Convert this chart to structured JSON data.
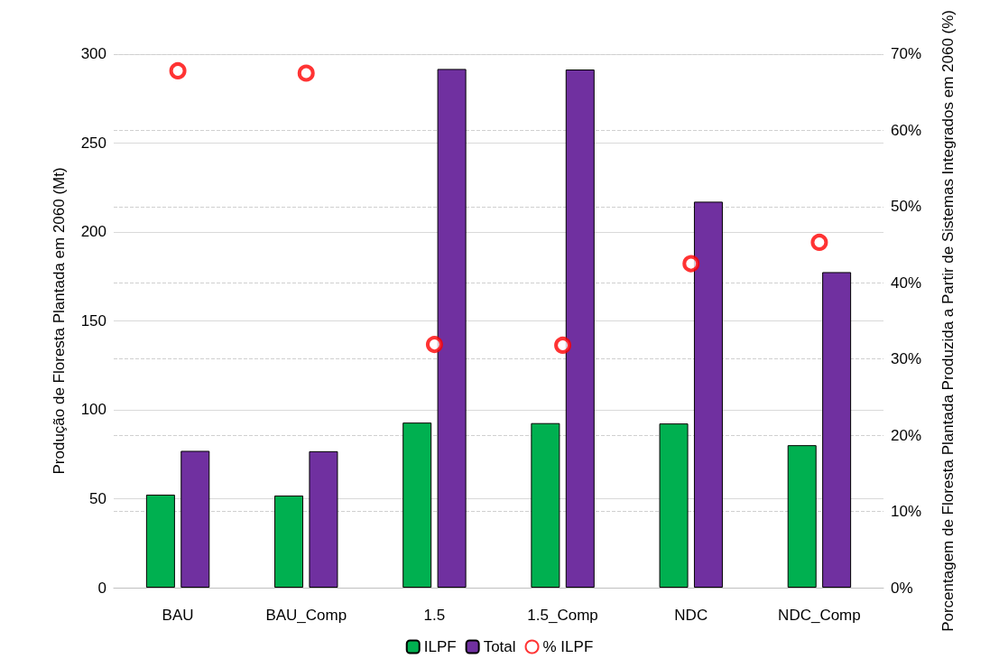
{
  "chart_data": {
    "type": "bar",
    "categories": [
      "BAU",
      "BAU_Comp",
      "1.5",
      "1.5_Comp",
      "NDC",
      "NDC_Comp"
    ],
    "ylabel": "Produção de Floresta Plantada em 2060 (Mt)",
    "y2label": "Porcentagem de Floresta Plantada Produzida a Partir de Sistemas Integrados em 2060 (%)",
    "series": [
      {
        "name": "ILPF",
        "color": "#00b050",
        "values": [
          52.3,
          51.8,
          92.8,
          92.5,
          92.3,
          80.1
        ]
      },
      {
        "name": "Total",
        "color": "#7030a0",
        "values": [
          76.9,
          76.7,
          291.6,
          291.3,
          217.0,
          177.4
        ]
      },
      {
        "name": "% ILPF",
        "type": "scatter",
        "axis": "y2",
        "color": "#ff0000",
        "marker": "circle",
        "values": [
          67.8,
          67.5,
          31.9,
          31.8,
          42.5,
          45.3
        ]
      }
    ],
    "ylim": [
      0,
      300
    ],
    "yticks": [
      0,
      50,
      100,
      150,
      200,
      250,
      300
    ],
    "y2lim": [
      0,
      70
    ],
    "y2ticks": [
      {
        "value": 0,
        "label": "0%"
      },
      {
        "value": 10,
        "label": "10%"
      },
      {
        "value": 20,
        "label": "20%"
      },
      {
        "value": 30,
        "label": "30%"
      },
      {
        "value": 40,
        "label": "40%"
      },
      {
        "value": 50,
        "label": "50%"
      },
      {
        "value": 60,
        "label": "60%"
      },
      {
        "value": 70,
        "label": "70%"
      }
    ],
    "grid": true,
    "legend": "bottom"
  }
}
